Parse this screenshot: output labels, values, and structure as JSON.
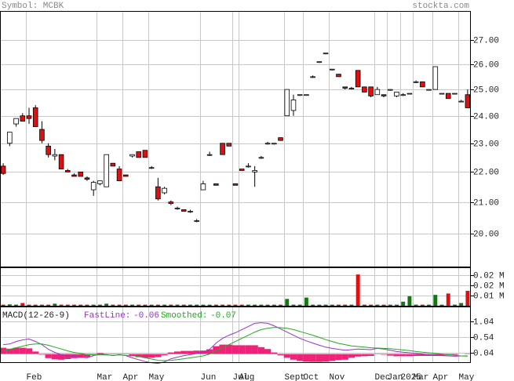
{
  "chart_data": [
    {
      "type": "candlestick",
      "title": "Symbol: MCBK",
      "source": "stockta.com",
      "categories": [
        null,
        null,
        null,
        null,
        "Feb",
        null,
        null,
        null,
        null,
        null,
        null,
        null,
        null,
        null,
        null,
        "Mar",
        null,
        null,
        null,
        "Apr",
        null,
        null,
        null,
        "May",
        null,
        null,
        null,
        null,
        null,
        null,
        null,
        "Jun",
        null,
        null,
        null,
        null,
        "Jul",
        "Aug",
        null,
        null,
        null,
        null,
        null,
        null,
        "Sept",
        null,
        null,
        "Oct",
        null,
        null,
        null,
        "Nov",
        null,
        null,
        null,
        null,
        null,
        null,
        "Dec",
        null,
        "Jan",
        null,
        "2025",
        null,
        "Mar",
        null,
        null,
        "Apr",
        null,
        null,
        null,
        "May",
        null
      ],
      "open": [
        22.2,
        23.0,
        23.7,
        24.0,
        24.0,
        24.3,
        23.5,
        22.9,
        22.55,
        22.6,
        22.05,
        21.9,
        22.0,
        21.8,
        21.4,
        21.6,
        21.5,
        22.3,
        22.1,
        21.9,
        22.55,
        22.7,
        22.75,
        22.15,
        21.5,
        21.3,
        21.0,
        20.8,
        20.75,
        20.7,
        20.4,
        21.4,
        22.6,
        21.6,
        23.0,
        23.0,
        21.6,
        22.1,
        22.2,
        22.0,
        22.5,
        23.0,
        23.0,
        23.2,
        24.0,
        24.2,
        24.8,
        24.8,
        25.5,
        26.1,
        26.45,
        25.8,
        25.6,
        25.1,
        25.05,
        25.75,
        25.1,
        25.1,
        24.8,
        24.8,
        25.0,
        24.75,
        24.8,
        24.85,
        25.3,
        25.3,
        25.0,
        25.0,
        24.85,
        24.85,
        24.85,
        24.55,
        24.8
      ],
      "high": [
        22.3,
        23.4,
        23.9,
        24.1,
        24.3,
        24.4,
        23.8,
        23.0,
        22.8,
        22.6,
        22.1,
        21.95,
        22.0,
        21.85,
        21.7,
        21.7,
        22.6,
        22.3,
        22.2,
        21.9,
        22.6,
        22.7,
        22.75,
        22.2,
        21.8,
        21.5,
        21.05,
        20.85,
        20.75,
        20.75,
        20.45,
        21.7,
        22.7,
        21.6,
        23.0,
        23.0,
        21.6,
        22.1,
        22.3,
        22.2,
        22.55,
        23.05,
        23.0,
        23.2,
        25.0,
        24.8,
        24.8,
        24.8,
        25.55,
        26.1,
        26.45,
        25.8,
        25.6,
        25.1,
        25.1,
        25.75,
        25.1,
        25.1,
        25.1,
        24.8,
        25.0,
        24.9,
        24.85,
        24.85,
        25.35,
        25.3,
        25.0,
        25.9,
        24.85,
        24.85,
        24.85,
        24.6,
        25.0
      ],
      "low": [
        21.9,
        22.9,
        23.6,
        23.8,
        23.7,
        23.6,
        23.0,
        22.5,
        22.4,
        22.1,
        22.0,
        21.85,
        21.85,
        21.7,
        21.2,
        21.55,
        21.5,
        22.2,
        21.7,
        21.85,
        22.5,
        22.5,
        22.5,
        22.1,
        21.05,
        21.25,
        20.9,
        20.75,
        20.7,
        20.65,
        20.35,
        21.4,
        22.55,
        21.55,
        22.6,
        22.9,
        21.55,
        22.05,
        22.15,
        21.5,
        22.45,
        22.95,
        22.95,
        23.1,
        24.0,
        24.0,
        24.75,
        24.8,
        25.45,
        26.05,
        26.4,
        25.75,
        25.5,
        25.0,
        25.0,
        25.1,
        24.9,
        24.7,
        24.8,
        24.7,
        24.95,
        24.7,
        24.75,
        24.85,
        25.25,
        25.1,
        25.0,
        25.0,
        24.85,
        24.65,
        24.85,
        24.55,
        24.3
      ],
      "close": [
        21.95,
        23.4,
        23.9,
        23.8,
        23.9,
        23.6,
        23.1,
        22.6,
        22.6,
        22.1,
        22.0,
        21.85,
        21.85,
        21.75,
        21.65,
        21.7,
        22.6,
        22.2,
        21.7,
        21.85,
        22.6,
        22.5,
        22.5,
        22.15,
        21.1,
        21.45,
        20.95,
        20.8,
        20.7,
        20.7,
        20.4,
        21.6,
        22.6,
        21.55,
        22.6,
        22.9,
        21.55,
        22.05,
        22.2,
        22.05,
        22.5,
        23.0,
        23.0,
        23.1,
        25.0,
        24.6,
        24.8,
        24.8,
        25.5,
        26.1,
        26.45,
        25.8,
        25.5,
        25.05,
        25.05,
        25.1,
        24.9,
        24.75,
        25.0,
        24.75,
        25.0,
        24.9,
        24.8,
        24.85,
        25.3,
        25.1,
        25.0,
        25.9,
        24.85,
        24.65,
        24.85,
        24.55,
        24.3
      ],
      "up_color": "#ffffff",
      "down_color": "#dd1111",
      "log_scale": true,
      "grid": true,
      "ylim": [
        19.0,
        28.2
      ],
      "yticks": [
        {
          "value": 20,
          "label": "20.00"
        },
        {
          "value": 21,
          "label": "21.00"
        },
        {
          "value": 22,
          "label": "22.00"
        },
        {
          "value": 23,
          "label": "23.00"
        },
        {
          "value": 24,
          "label": "24.00"
        },
        {
          "value": 25,
          "label": "25.00"
        },
        {
          "value": 26,
          "label": "26.00"
        },
        {
          "value": 27,
          "label": "27.00"
        }
      ]
    },
    {
      "type": "bar",
      "values": [
        0.0008,
        0.001,
        0.0008,
        0.002,
        0.0008,
        0.0008,
        0.0008,
        0.0008,
        0.0015,
        0.0008,
        0.0008,
        0.0008,
        0.0008,
        0.0008,
        0.0008,
        0.0008,
        0.0015,
        0.0008,
        0.0008,
        0.0008,
        0.0008,
        0.0008,
        0.0008,
        0.0008,
        0.0008,
        0.0008,
        0.0008,
        0.0008,
        0.0008,
        0.0008,
        0.0008,
        0.0008,
        0.0008,
        0.0008,
        0.0008,
        0.0008,
        0.0008,
        0.0008,
        0.0008,
        0.0008,
        0.0008,
        0.0008,
        0.0008,
        0.0008,
        0.005,
        0.0008,
        0.0008,
        0.006,
        0.0008,
        0.0008,
        0.0008,
        0.0008,
        0.0008,
        0.0008,
        0.0008,
        0.023,
        0.0008,
        0.0008,
        0.0008,
        0.0008,
        0.0008,
        0.0008,
        0.003,
        0.007,
        0.0008,
        0.0008,
        0.0008,
        0.008,
        0.0008,
        0.009,
        0.0008,
        0.002,
        0.011
      ],
      "up_color": "#117711",
      "down_color": "#dd1111",
      "grid": true,
      "ylim": [
        0,
        0.0277
      ],
      "yticks": [
        {
          "value": 0.0075,
          "label": "0.01 M"
        },
        {
          "value": 0.015,
          "label": "0.02 M"
        },
        {
          "value": 0.0225,
          "label": "0.02 M"
        }
      ]
    },
    {
      "type": "macd",
      "title": "MACD(12-26-9)",
      "grid": true,
      "ylim": [
        -0.26,
        1.49
      ],
      "yticks": [
        0.04,
        0.54,
        1.04
      ],
      "histogram": {
        "color": "#ee2277",
        "values": [
          0.2,
          0.17,
          0.2,
          0.2,
          0.18,
          0.08,
          -0.02,
          -0.13,
          -0.17,
          -0.18,
          -0.16,
          -0.13,
          -0.12,
          -0.1,
          -0.02,
          0.03,
          0.01,
          -0.01,
          0.01,
          -0.01,
          -0.07,
          -0.1,
          -0.12,
          -0.12,
          -0.1,
          -0.04,
          0.05,
          0.08,
          0.1,
          0.1,
          0.11,
          0.11,
          0.15,
          0.25,
          0.3,
          0.3,
          0.28,
          0.28,
          0.28,
          0.28,
          0.22,
          0.16,
          0.05,
          -0.04,
          -0.12,
          -0.18,
          -0.22,
          -0.24,
          -0.25,
          -0.25,
          -0.24,
          -0.22,
          -0.19,
          -0.18,
          -0.12,
          -0.08,
          -0.07,
          -0.06,
          -0.01,
          -0.02,
          -0.05,
          -0.07,
          -0.07,
          -0.07,
          -0.06,
          -0.06,
          -0.06,
          -0.06,
          -0.05,
          -0.04,
          -0.03,
          0.0,
          0.01
        ]
      },
      "series": [
        {
          "name": "FastLine:",
          "current": -0.06,
          "color": "#9933cc",
          "values": [
            0.3,
            0.32,
            0.4,
            0.45,
            0.48,
            0.4,
            0.3,
            0.15,
            0.05,
            -0.02,
            -0.06,
            -0.08,
            -0.1,
            -0.12,
            -0.05,
            0.0,
            -0.02,
            -0.05,
            -0.02,
            -0.05,
            -0.12,
            -0.18,
            -0.24,
            -0.28,
            -0.3,
            -0.25,
            -0.15,
            -0.1,
            -0.05,
            -0.02,
            0.02,
            0.05,
            0.15,
            0.35,
            0.5,
            0.6,
            0.68,
            0.78,
            0.88,
            0.98,
            1.0,
            0.98,
            0.9,
            0.8,
            0.7,
            0.6,
            0.5,
            0.42,
            0.35,
            0.28,
            0.22,
            0.18,
            0.15,
            0.12,
            0.14,
            0.16,
            0.15,
            0.14,
            0.18,
            0.16,
            0.12,
            0.08,
            0.06,
            0.04,
            0.02,
            0.0,
            -0.02,
            -0.04,
            -0.05,
            -0.06,
            -0.07,
            -0.06,
            -0.06
          ]
        },
        {
          "name": "Smoothed:",
          "current": -0.07,
          "color": "#22aa22",
          "values": [
            0.1,
            0.15,
            0.2,
            0.25,
            0.3,
            0.32,
            0.32,
            0.28,
            0.22,
            0.16,
            0.1,
            0.05,
            0.02,
            -0.02,
            -0.03,
            -0.03,
            -0.03,
            -0.04,
            -0.03,
            -0.04,
            -0.05,
            -0.08,
            -0.12,
            -0.16,
            -0.2,
            -0.21,
            -0.2,
            -0.18,
            -0.15,
            -0.12,
            -0.09,
            -0.06,
            0.0,
            0.1,
            0.2,
            0.3,
            0.4,
            0.5,
            0.6,
            0.7,
            0.78,
            0.82,
            0.85,
            0.84,
            0.82,
            0.78,
            0.72,
            0.66,
            0.6,
            0.53,
            0.46,
            0.4,
            0.34,
            0.3,
            0.26,
            0.24,
            0.22,
            0.2,
            0.19,
            0.18,
            0.17,
            0.15,
            0.13,
            0.11,
            0.08,
            0.06,
            0.04,
            0.02,
            0.0,
            -0.02,
            -0.04,
            -0.06,
            -0.07
          ]
        }
      ]
    }
  ]
}
